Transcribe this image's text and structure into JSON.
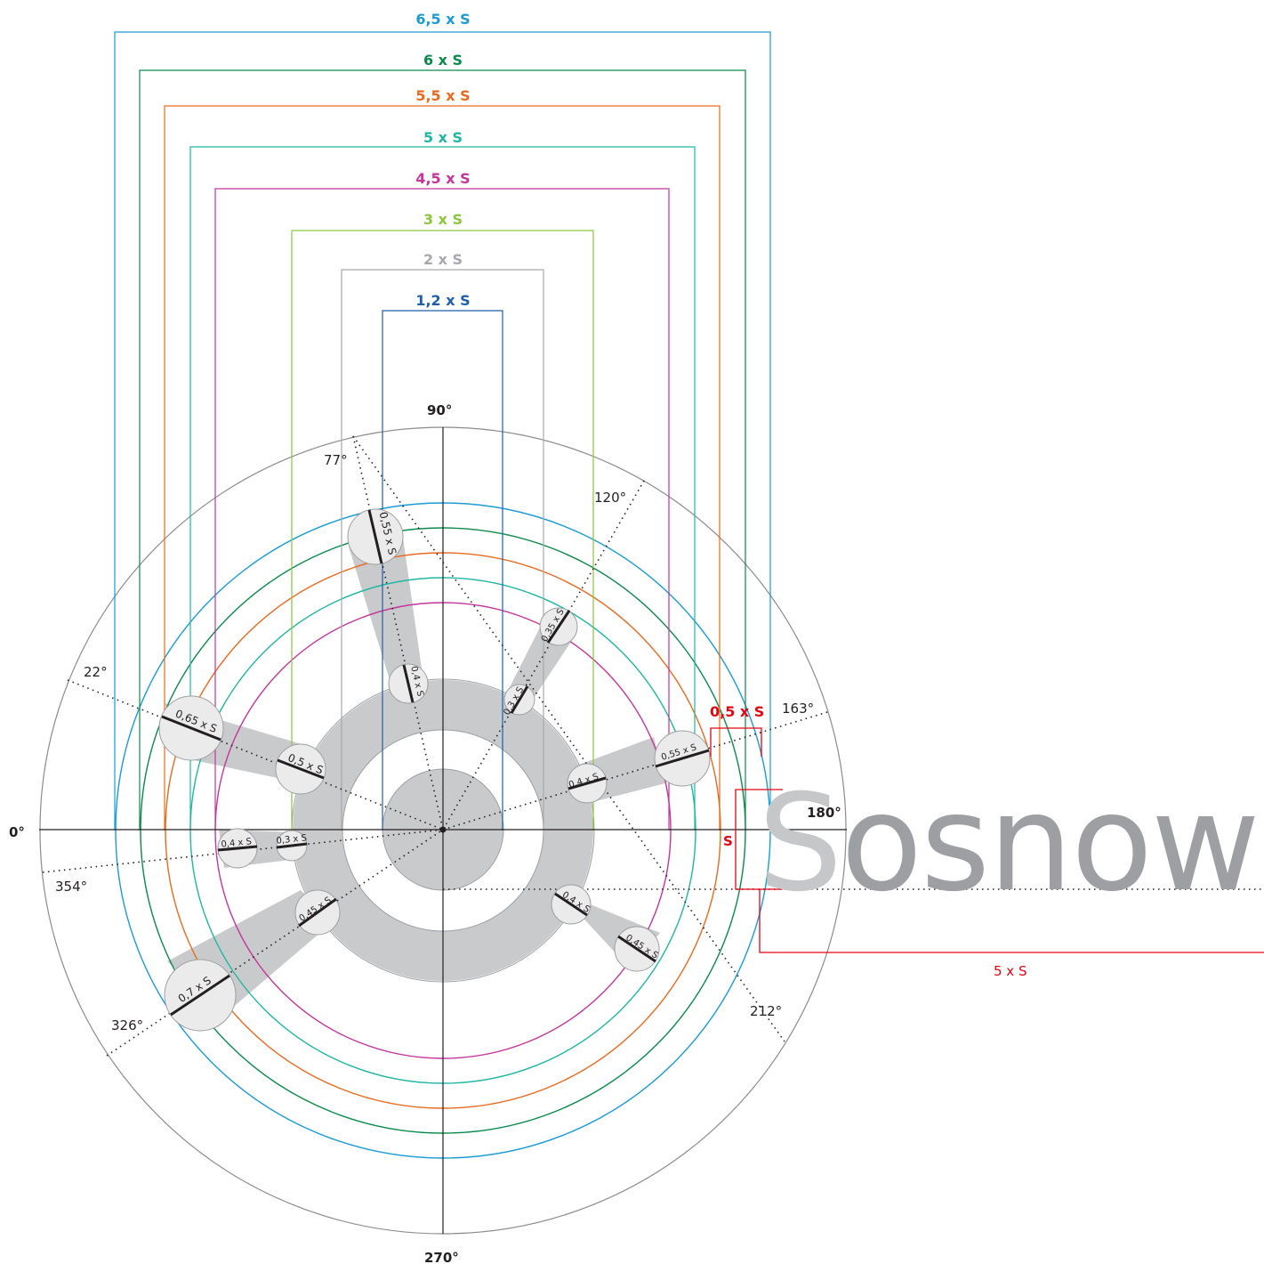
{
  "colors": {
    "palette": {
      "blue_light": "#1a9bd4",
      "green_dark": "#0a8a4a",
      "orange": "#e96a1e",
      "teal": "#1fb6a4",
      "magenta": "#c3359c",
      "lime": "#8cc63f",
      "gray": "#a7a9ac",
      "navy": "#1f5fa8",
      "red": "#e30613",
      "band": "#c9cacc",
      "spot": "#ebebec"
    }
  },
  "construction": {
    "scale_labels": [
      {
        "text": "6,5 x S",
        "color": "blue_light"
      },
      {
        "text": "6 x S",
        "color": "green_dark"
      },
      {
        "text": "5,5 x S",
        "color": "orange"
      },
      {
        "text": "5 x S",
        "color": "teal"
      },
      {
        "text": "4,5 x S",
        "color": "magenta"
      },
      {
        "text": "3 x S",
        "color": "lime"
      },
      {
        "text": "2 x S",
        "color": "gray"
      },
      {
        "text": "1,2 x S",
        "color": "navy"
      }
    ],
    "angles": {
      "a0": "0°",
      "a90": "90°",
      "a180": "180°",
      "a270": "270°",
      "a77": "77°",
      "a120": "120°",
      "a22": "22°",
      "a163": "163°",
      "a354": "354°",
      "a326": "326°",
      "a212": "212°"
    },
    "spot_labels": {
      "s1": "0,55 x S",
      "s2": "0,4 x S",
      "s3": "0,35 x S",
      "s4": "0,3 x S",
      "s5": "0,65 x S",
      "s6": "0,5 x S",
      "s7": "0,55 x S",
      "s8": "0,4 x S",
      "s9": "0,4 x S",
      "s10": "0,3 x S",
      "s11": "0,7 x S",
      "s12": "0,45 x S",
      "s13": "0,4 x S",
      "s14": "0,45 x S"
    },
    "dimension_labels": {
      "half_s": "0,5 x S",
      "s": "S",
      "five_s": "5 x S"
    }
  },
  "wordmark": {
    "first_letter": "S",
    "rest": "osnowiec"
  }
}
